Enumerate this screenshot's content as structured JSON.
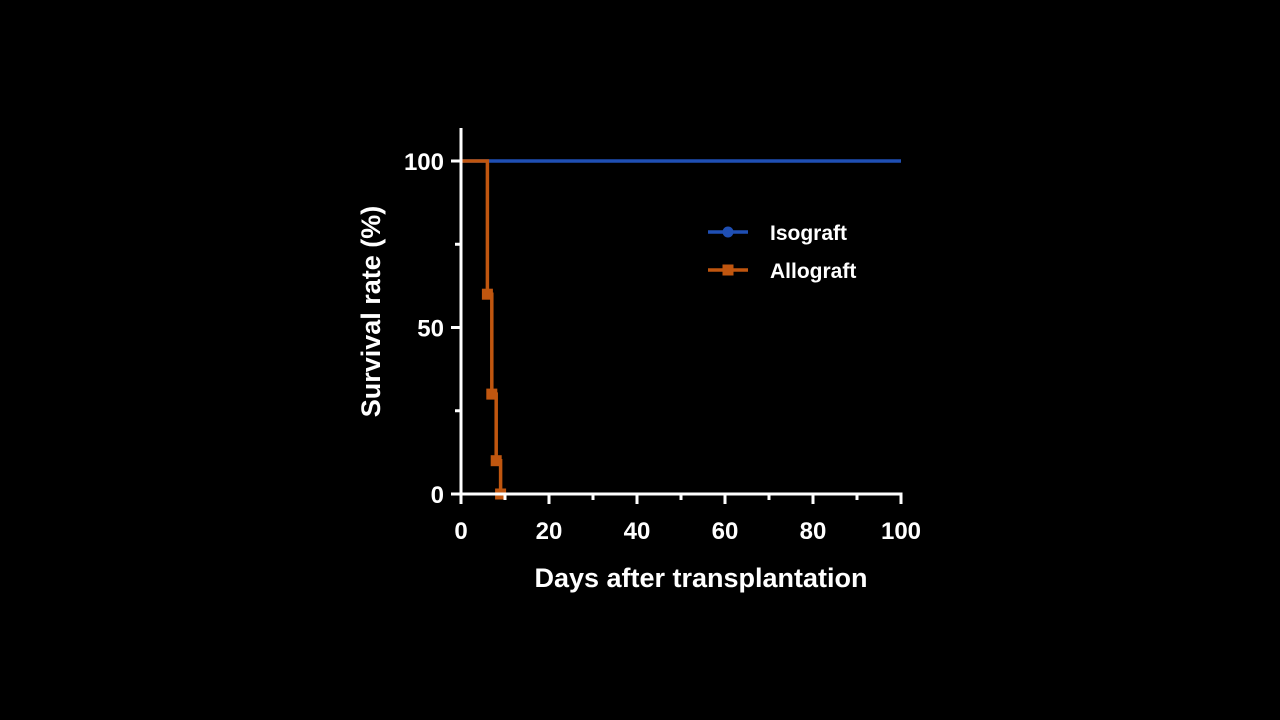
{
  "chart_data": {
    "type": "line",
    "step": true,
    "xlabel": "Days after transplantation",
    "ylabel": "Survival rate (%)",
    "xlim": [
      0,
      100
    ],
    "ylim": [
      0,
      110
    ],
    "xticks": [
      "0",
      "20",
      "40",
      "60",
      "80",
      "100"
    ],
    "yticks": [
      "0",
      "50",
      "100"
    ],
    "y_minor_ticks": [
      25,
      75
    ],
    "grid": false,
    "legend_position": "upper-right",
    "background": "#000000",
    "series": [
      {
        "name": "Isograft",
        "color": "#1f4fb4",
        "marker": "circle",
        "points": [
          {
            "x": 0,
            "y": 100
          },
          {
            "x": 100,
            "y": 100
          }
        ]
      },
      {
        "name": "Allograft",
        "color": "#c0560f",
        "marker": "square",
        "points": [
          {
            "x": 0,
            "y": 100
          },
          {
            "x": 6,
            "y": 60
          },
          {
            "x": 7,
            "y": 30
          },
          {
            "x": 8,
            "y": 10
          },
          {
            "x": 9,
            "y": 0
          }
        ]
      }
    ]
  }
}
